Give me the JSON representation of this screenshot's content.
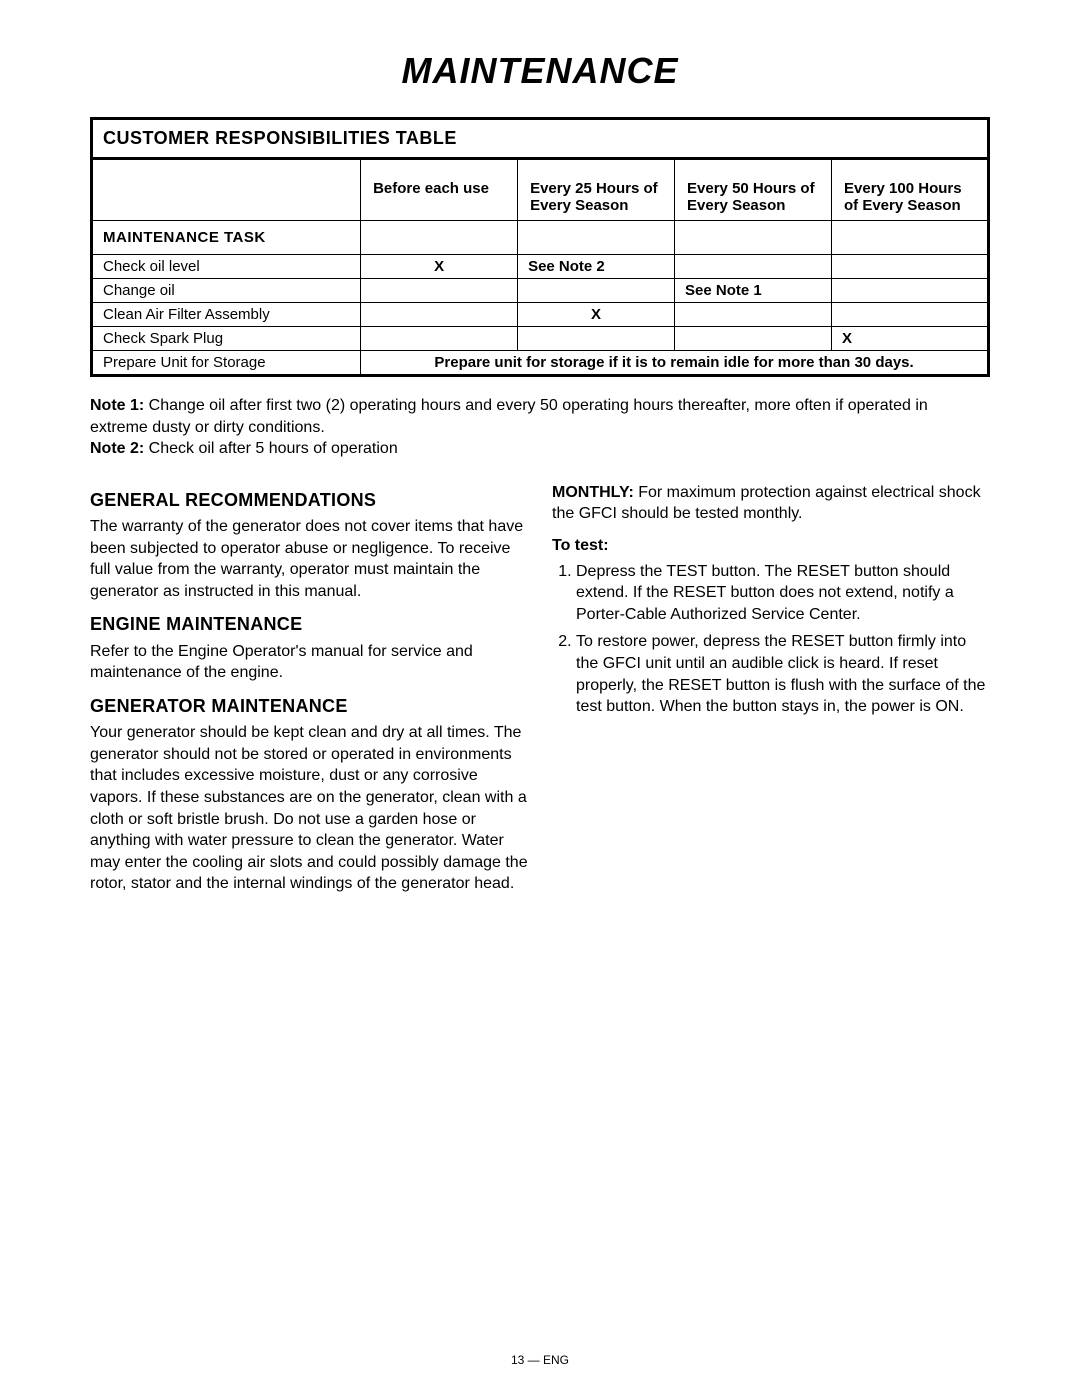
{
  "page_title": "MAINTENANCE",
  "table": {
    "title": "CUSTOMER RESPONSIBILITIES TABLE",
    "mt_label": "MAINTENANCE TASK",
    "headers": {
      "c1": "Before each use",
      "c2": "Every 25 Hours of Every Season",
      "c3": "Every 50 Hours of Every Season",
      "c4": "Every 100 Hours of Every Season"
    },
    "rows": {
      "r0": {
        "task": "Check oil level",
        "c1": "X",
        "c2": "See Note 2",
        "c3": "",
        "c4": ""
      },
      "r1": {
        "task": "Change oil",
        "c1": "",
        "c2": "",
        "c3": "See Note 1",
        "c4": ""
      },
      "r2": {
        "task": "Clean Air Filter Assembly",
        "c1": "",
        "c2": "X",
        "c3": "",
        "c4": ""
      },
      "r3": {
        "task": "Check Spark Plug",
        "c1": "",
        "c2": "",
        "c3": "",
        "c4": "X"
      },
      "r4": {
        "task": "Prepare Unit for Storage",
        "merged": "Prepare unit for storage if it is to remain idle for more than 30 days."
      }
    }
  },
  "notes": {
    "n1_label": "Note 1:",
    "n1_text": "  Change oil after first two (2) operating hours and every 50 operating hours thereafter, more often if operated in extreme dusty or dirty conditions.",
    "n2_label": "Note 2:",
    "n2_text": "  Check oil after 5 hours of operation"
  },
  "left": {
    "h1": "GENERAL RECOMMENDATIONS",
    "p1": "The warranty of the generator does not cover items that have been subjected to operator abuse or negligence. To receive full value from the warranty, operator must maintain the generator as instructed in this manual.",
    "h2": "ENGINE MAINTENANCE",
    "p2": "Refer to the Engine Operator's manual for service and maintenance of the engine.",
    "h3": "GENERATOR MAINTENANCE",
    "p3": "Your generator should be kept clean and dry at all times.  The generator should not be stored or operated in environments that includes excessive moisture, dust or any corrosive vapors. If these substances are on the generator, clean with a cloth or soft bristle brush. Do not use a garden hose or anything with water pressure to clean the generator.  Water may enter the cooling air slots and could possibly damage the rotor, stator and the internal windings of the generator head."
  },
  "right": {
    "monthly_label": "MONTHLY:",
    "monthly_text": "  For maximum protection against electrical shock the GFCI should be tested monthly.",
    "to_test": "To test:",
    "step1": "Depress the TEST button.  The RESET button should extend.  If the RESET button does not extend, notify a Porter-Cable Authorized Service Center.",
    "step2": "To restore power, depress the RESET button firmly into the GFCI unit until an audible click is heard.  If reset properly, the RESET button is flush with the surface of the test button.  When the button stays in, the power is ON."
  },
  "footer": "13  —  ENG"
}
